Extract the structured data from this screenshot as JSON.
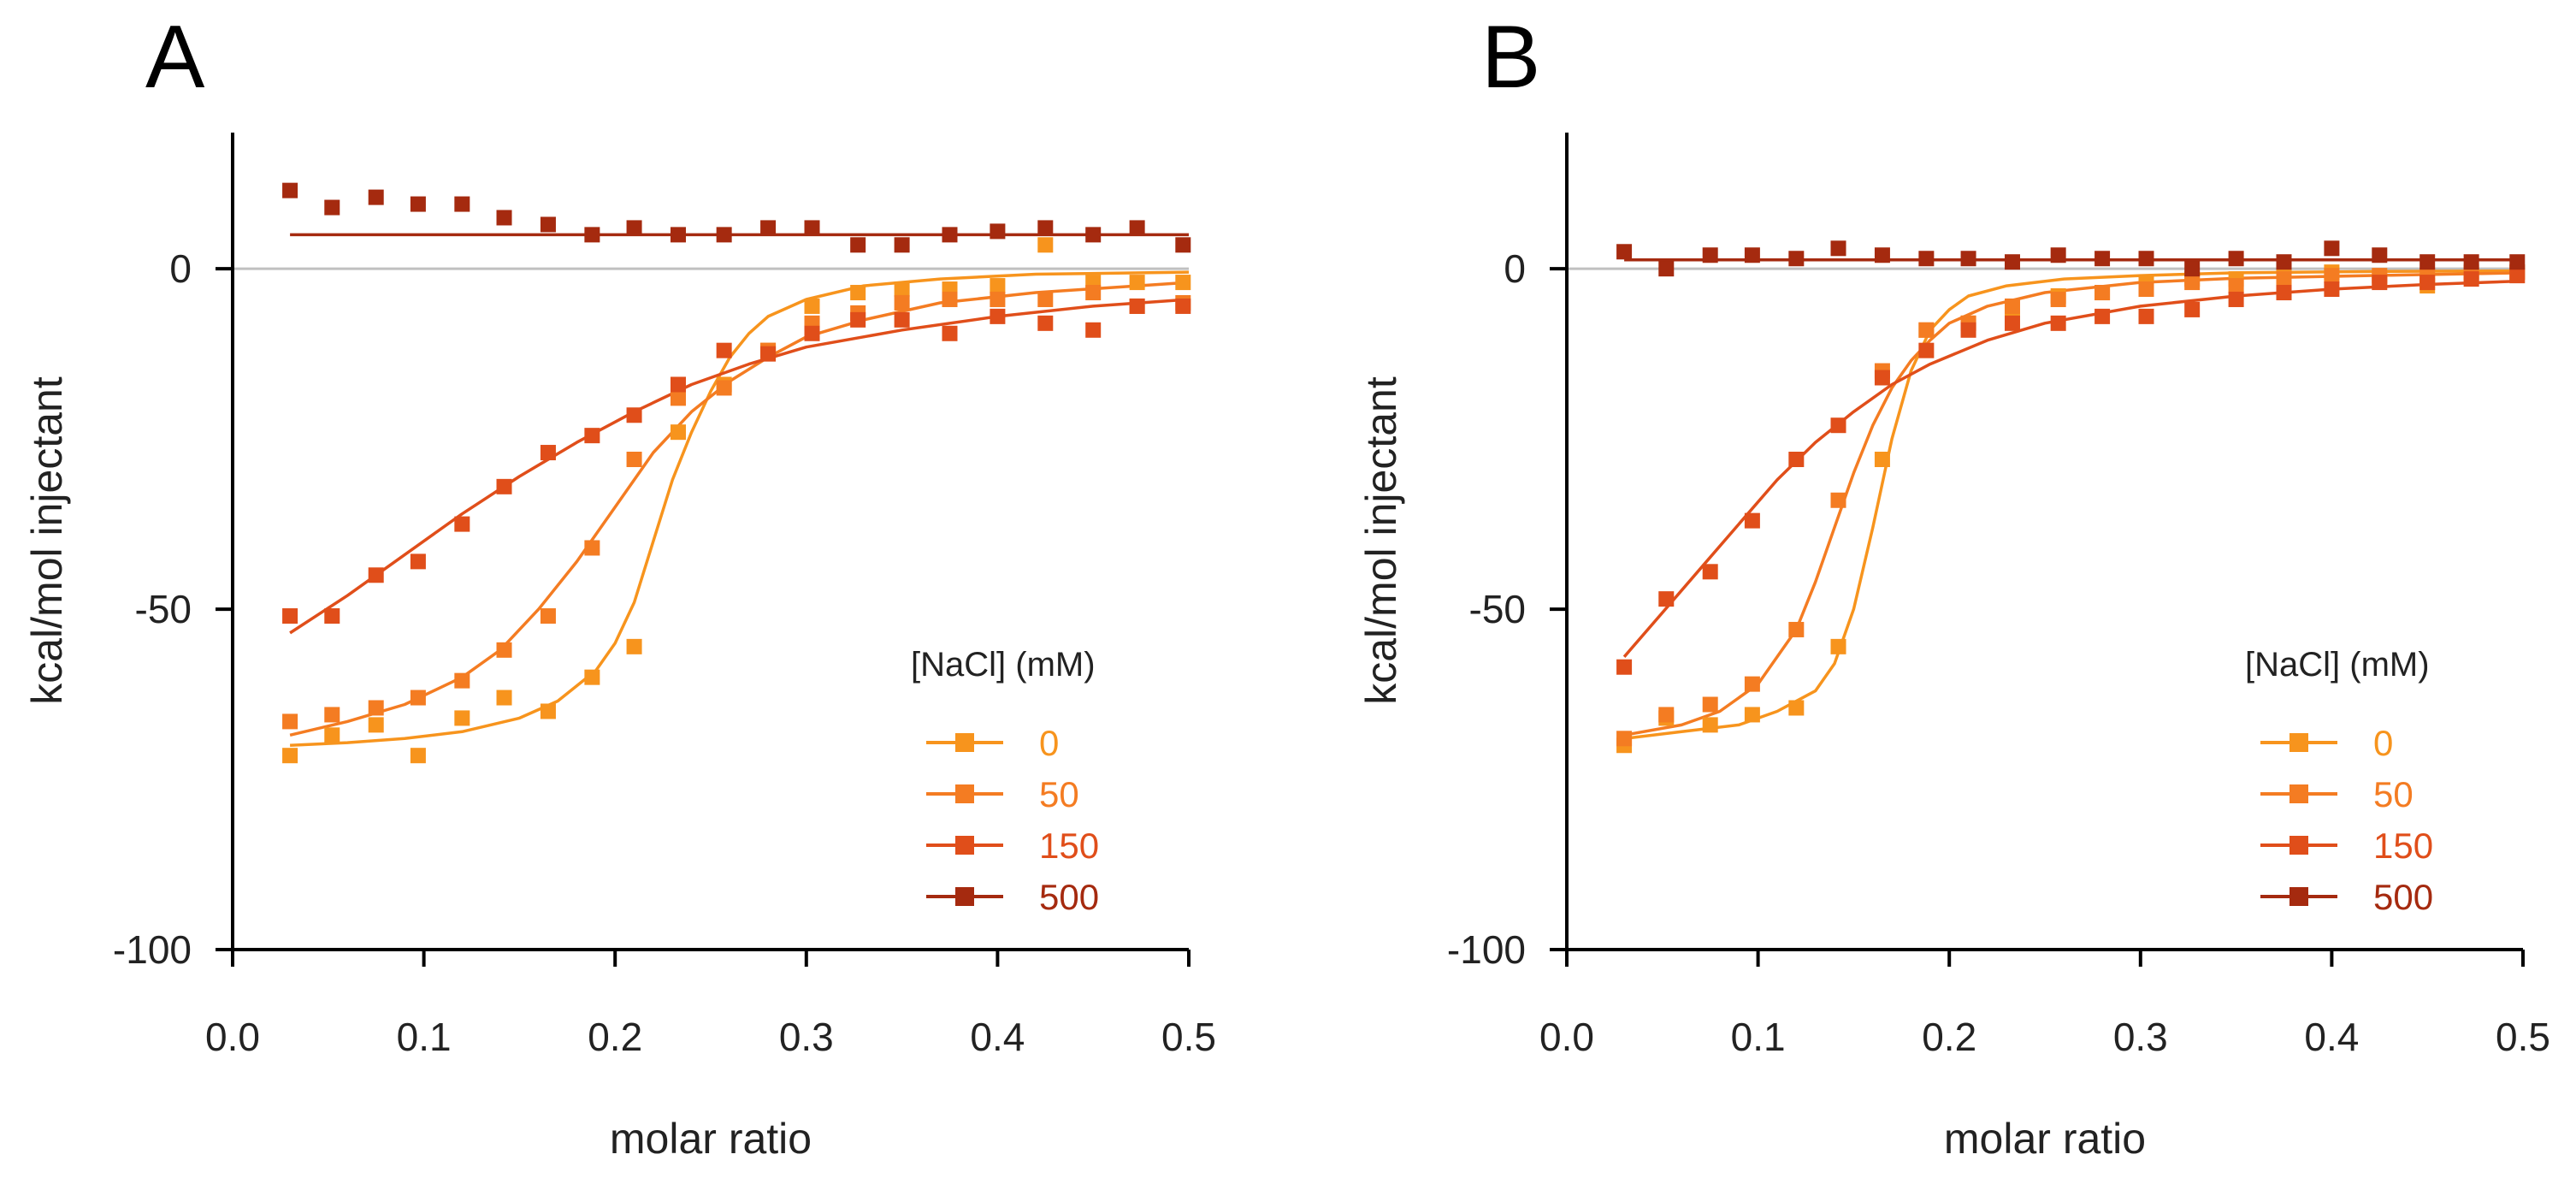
{
  "chart_data": [
    {
      "type": "scatter",
      "panel_label": "A",
      "xlabel": "molar ratio",
      "ylabel": "kcal/mol injectant",
      "xlim": [
        0,
        0.5
      ],
      "ylim": [
        -100,
        20
      ],
      "xticks": [
        "0.0",
        "0.1",
        "0.2",
        "0.3",
        "0.4",
        "0.5"
      ],
      "yticks": [
        "0",
        "-50",
        "-100"
      ],
      "zero_line": true,
      "legend_title": "[NaCl] (mM)",
      "legend_position": "bottom-right",
      "x": [
        0.03,
        0.052,
        0.075,
        0.097,
        0.12,
        0.142,
        0.165,
        0.188,
        0.21,
        0.233,
        0.257,
        0.28,
        0.303,
        0.327,
        0.35,
        0.375,
        0.4,
        0.425,
        0.45,
        0.473,
        0.497
      ],
      "series": [
        {
          "name": "0",
          "color": "#f7941d",
          "values": [
            -71.5,
            -68.5,
            -67,
            -71.5,
            -66,
            -63,
            -65,
            -60,
            -55.5,
            -24,
            -17,
            -12,
            -5.5,
            -3.5,
            -3,
            -3,
            -2.5,
            3.5,
            -2,
            -2,
            -2
          ]
        },
        {
          "name": "50",
          "color": "#f47c22",
          "values": [
            -66.5,
            -65.5,
            -64.5,
            -63,
            -60.5,
            -56,
            -51,
            -41,
            -28,
            -19,
            -17.5,
            -12,
            -8,
            -6.5,
            -5,
            -4.5,
            -4.5,
            -4.5,
            -3.5,
            -5.5,
            -5
          ]
        },
        {
          "name": "150",
          "color": "#e04e1a",
          "values": [
            -51,
            -51,
            -45,
            -43,
            -37.5,
            -32,
            -27,
            -24.5,
            -21.5,
            -17,
            -12,
            -12.5,
            -9.5,
            -7.5,
            -7.5,
            -9.5,
            -7,
            -8,
            -9,
            -5.5,
            -5.5
          ]
        },
        {
          "name": "500",
          "color": "#a52a0f",
          "values": [
            11.5,
            9,
            10.5,
            9.5,
            9.5,
            7.5,
            6.5,
            5,
            6,
            5,
            5,
            6,
            6,
            3.5,
            3.5,
            5,
            5.5,
            6,
            5,
            6,
            3.5
          ]
        }
      ],
      "fits": [
        {
          "name": "0",
          "color": "#f7941d",
          "x": [
            0.03,
            0.06,
            0.09,
            0.12,
            0.15,
            0.17,
            0.19,
            0.2,
            0.21,
            0.22,
            0.23,
            0.24,
            0.25,
            0.26,
            0.27,
            0.28,
            0.3,
            0.33,
            0.37,
            0.42,
            0.5
          ],
          "values": [
            -70,
            -69.6,
            -69,
            -68,
            -66,
            -63.5,
            -59,
            -55,
            -49,
            -40,
            -31,
            -24,
            -18,
            -13,
            -9.5,
            -7,
            -4.5,
            -2.5,
            -1.5,
            -0.8,
            -0.5
          ]
        },
        {
          "name": "50",
          "color": "#f47c22",
          "x": [
            0.03,
            0.06,
            0.09,
            0.12,
            0.14,
            0.16,
            0.18,
            0.2,
            0.22,
            0.24,
            0.26,
            0.28,
            0.3,
            0.33,
            0.37,
            0.42,
            0.5
          ],
          "values": [
            -68.5,
            -66.5,
            -64,
            -60,
            -56,
            -50,
            -43,
            -35,
            -27,
            -21,
            -16.5,
            -13,
            -10,
            -7.5,
            -5,
            -3.5,
            -2
          ]
        },
        {
          "name": "150",
          "color": "#e04e1a",
          "x": [
            0.03,
            0.06,
            0.09,
            0.12,
            0.15,
            0.18,
            0.21,
            0.24,
            0.27,
            0.3,
            0.35,
            0.4,
            0.45,
            0.5
          ],
          "values": [
            -53.5,
            -48,
            -42,
            -36,
            -30.5,
            -25.5,
            -21,
            -17,
            -14,
            -11.5,
            -9,
            -7,
            -5.5,
            -4.5
          ]
        },
        {
          "name": "500",
          "color": "#a52a0f",
          "x": [
            0.03,
            0.5
          ],
          "values": [
            5,
            5
          ]
        }
      ]
    },
    {
      "type": "scatter",
      "panel_label": "B",
      "xlabel": "molar ratio",
      "ylabel": "kcal/mol injectant",
      "xlim": [
        0,
        0.5
      ],
      "ylim": [
        -100,
        20
      ],
      "xticks": [
        "0.0",
        "0.1",
        "0.2",
        "0.3",
        "0.4",
        "0.5"
      ],
      "yticks": [
        "0",
        "-50",
        "-100"
      ],
      "zero_line": true,
      "legend_title": "[NaCl] (mM)",
      "legend_position": "bottom-right",
      "x": [
        0.03,
        0.052,
        0.075,
        0.097,
        0.12,
        0.142,
        0.165,
        0.188,
        0.21,
        0.233,
        0.257,
        0.28,
        0.303,
        0.327,
        0.35,
        0.375,
        0.4,
        0.425,
        0.45,
        0.473,
        0.497
      ],
      "series": [
        {
          "name": "0",
          "color": "#f7941d",
          "values": [
            -70,
            -66,
            -67,
            -65.5,
            -64.5,
            -55.5,
            -28,
            -9,
            -8,
            -6,
            -4,
            -3.5,
            -2,
            -1.5,
            -1.5,
            -1,
            -0.5,
            -1.5,
            -2.5,
            -1,
            -0.5
          ]
        },
        {
          "name": "50",
          "color": "#f47c22",
          "values": [
            -69,
            -65.5,
            -64,
            -61,
            -53,
            -34,
            -15,
            -9,
            -8,
            -5.5,
            -4.5,
            -3.5,
            -3,
            -2,
            -2.5,
            -1.5,
            -1,
            -1,
            -1,
            -0.5,
            -0.5
          ]
        },
        {
          "name": "150",
          "color": "#e04e1a",
          "values": [
            -58.5,
            -48.5,
            -44.5,
            -37,
            -28,
            -23,
            -16,
            -12,
            -9,
            -8,
            -8,
            -7,
            -7,
            -6,
            -4.5,
            -3.5,
            -3,
            -2,
            -2,
            -1.5,
            -1
          ]
        },
        {
          "name": "500",
          "color": "#a52a0f",
          "values": [
            2.5,
            0,
            2,
            2,
            1.5,
            3,
            2,
            1.5,
            1.5,
            1,
            2,
            1.5,
            1.5,
            0,
            1.5,
            1,
            3,
            2,
            1,
            1,
            1
          ]
        }
      ],
      "fits": [
        {
          "name": "0",
          "color": "#f7941d",
          "x": [
            0.03,
            0.06,
            0.09,
            0.11,
            0.13,
            0.14,
            0.15,
            0.16,
            0.17,
            0.18,
            0.19,
            0.2,
            0.21,
            0.23,
            0.26,
            0.3,
            0.35,
            0.42,
            0.5
          ],
          "values": [
            -69,
            -68,
            -67,
            -65,
            -62,
            -58,
            -50,
            -38,
            -25,
            -15,
            -9,
            -6,
            -4,
            -2.5,
            -1.5,
            -1,
            -0.6,
            -0.4,
            -0.3
          ]
        },
        {
          "name": "50",
          "color": "#f47c22",
          "x": [
            0.03,
            0.06,
            0.08,
            0.1,
            0.12,
            0.13,
            0.14,
            0.15,
            0.16,
            0.17,
            0.18,
            0.19,
            0.2,
            0.22,
            0.25,
            0.3,
            0.35,
            0.42,
            0.5
          ],
          "values": [
            -68.5,
            -67,
            -65,
            -61,
            -53,
            -46,
            -38,
            -30,
            -23,
            -17.5,
            -13.5,
            -10.5,
            -8,
            -5.5,
            -3.5,
            -2,
            -1.4,
            -1,
            -0.6
          ]
        },
        {
          "name": "150",
          "color": "#e04e1a",
          "x": [
            0.03,
            0.05,
            0.07,
            0.09,
            0.11,
            0.13,
            0.15,
            0.17,
            0.19,
            0.22,
            0.25,
            0.3,
            0.35,
            0.4,
            0.45,
            0.5
          ],
          "values": [
            -57,
            -50.5,
            -44,
            -37.5,
            -31,
            -25.5,
            -21,
            -17,
            -14,
            -10.5,
            -8,
            -5.5,
            -4,
            -3,
            -2.3,
            -1.8
          ]
        },
        {
          "name": "500",
          "color": "#a52a0f",
          "x": [
            0.03,
            0.5
          ],
          "values": [
            1.3,
            1.3
          ]
        }
      ]
    }
  ]
}
